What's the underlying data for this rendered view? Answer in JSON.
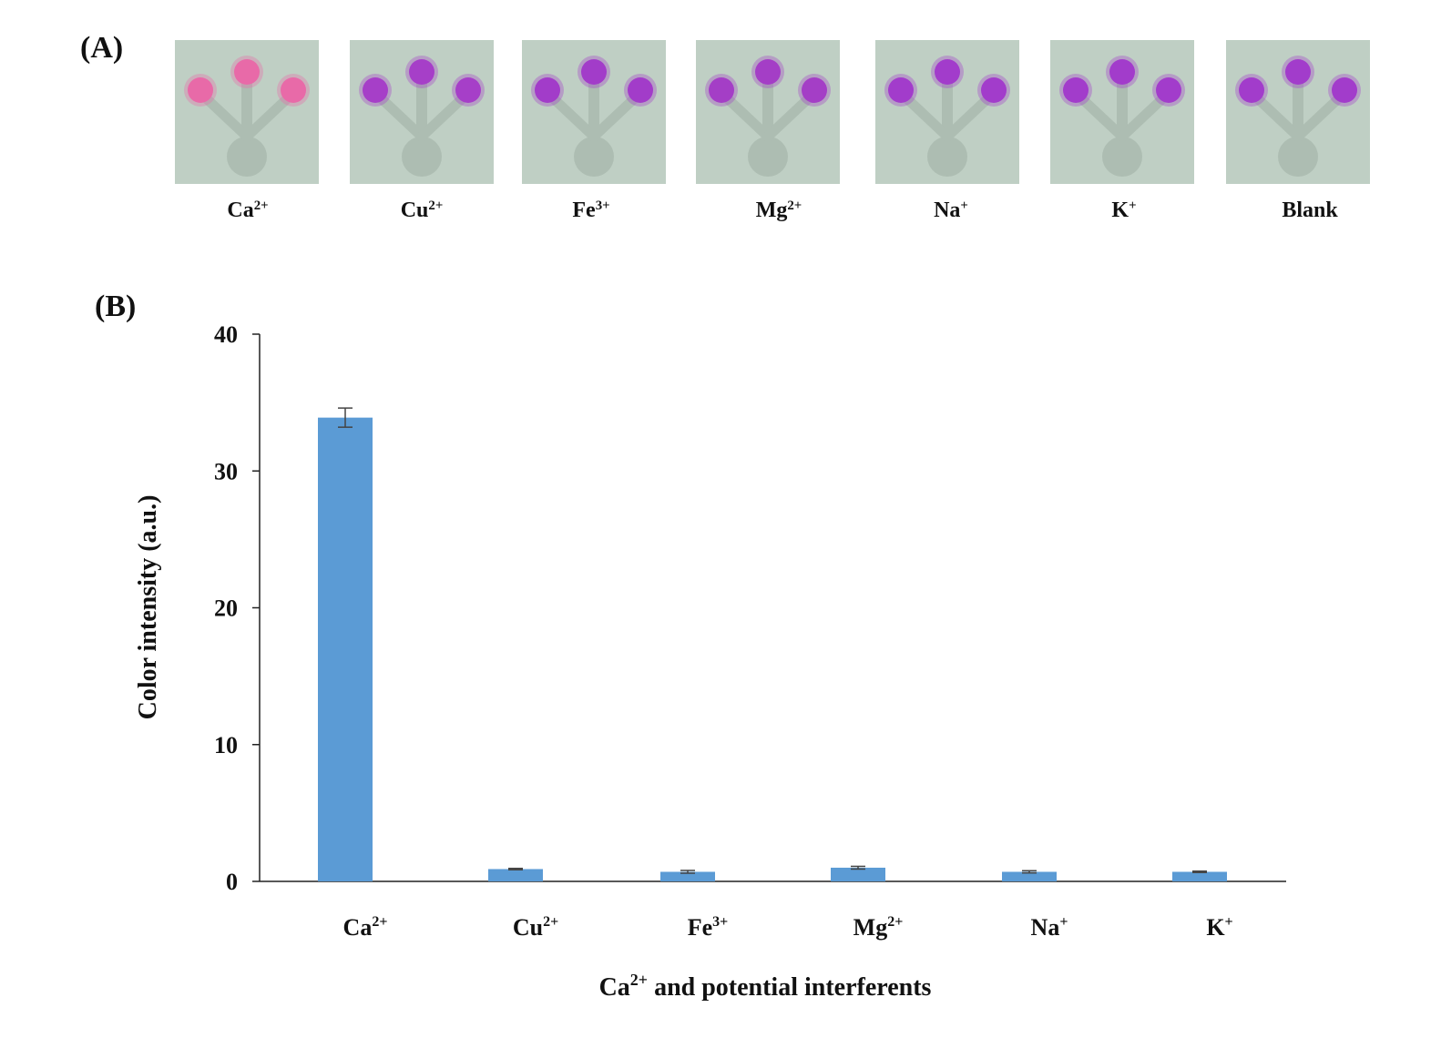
{
  "panel_a": {
    "label": "(A)",
    "devices": [
      {
        "name": "Ca",
        "charge": "2+",
        "spot_color": "#e86aa8"
      },
      {
        "name": "Cu",
        "charge": "2+",
        "spot_color": "#a63fc8"
      },
      {
        "name": "Fe",
        "charge": "3+",
        "spot_color": "#a23cc9"
      },
      {
        "name": "Mg",
        "charge": "2+",
        "spot_color": "#a43ec6"
      },
      {
        "name": "Na",
        "charge": "+",
        "spot_color": "#a23ccb"
      },
      {
        "name": "K",
        "charge": "+",
        "spot_color": "#a23ccb"
      },
      {
        "name": "Blank",
        "charge": "",
        "spot_color": "#a23ccb"
      }
    ],
    "paper_color": "#bfcfc4"
  },
  "panel_b": {
    "label": "(B)"
  },
  "chart_data": {
    "type": "bar",
    "categories": [
      {
        "name": "Ca",
        "charge": "2+"
      },
      {
        "name": "Cu",
        "charge": "2+"
      },
      {
        "name": "Fe",
        "charge": "3+"
      },
      {
        "name": "Mg",
        "charge": "2+"
      },
      {
        "name": "Na",
        "charge": "+"
      },
      {
        "name": "K",
        "charge": "+"
      }
    ],
    "values": [
      33.9,
      0.9,
      0.7,
      1.0,
      0.7,
      0.7
    ],
    "errors": [
      0.7,
      0.05,
      0.1,
      0.1,
      0.08,
      0.05
    ],
    "ylabel": "Color intensity (a.u.)",
    "xlabel": {
      "name": "Ca",
      "charge": "2+",
      "rest": " and potential interferents"
    },
    "ylim": [
      0,
      40
    ],
    "yticks": [
      0,
      10,
      20,
      30,
      40
    ],
    "bar_color": "#5b9bd5",
    "grid": false,
    "legend": "none"
  }
}
